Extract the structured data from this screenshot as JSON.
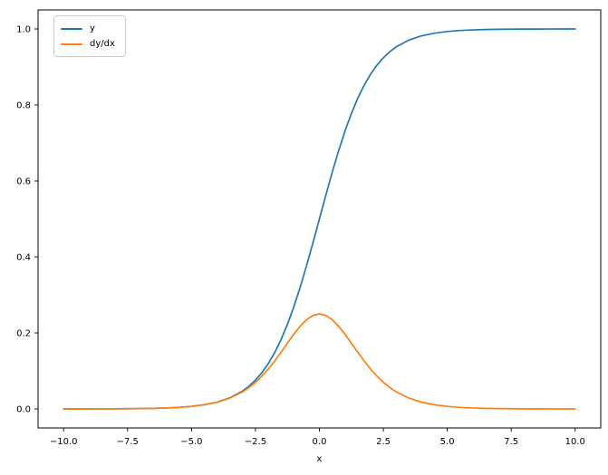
{
  "figure": {
    "background": "#ffffff"
  },
  "chart_data": {
    "type": "line",
    "title": "",
    "xlabel": "x",
    "ylabel": "",
    "xlim": [
      -11,
      11
    ],
    "ylim": [
      -0.05,
      1.05
    ],
    "grid": false,
    "xticks": [
      -10.0,
      -7.5,
      -5.0,
      -2.5,
      0.0,
      2.5,
      5.0,
      7.5,
      10.0
    ],
    "xtick_labels": [
      "−10.0",
      "−7.5",
      "−5.0",
      "−2.5",
      "0.0",
      "2.5",
      "5.0",
      "7.5",
      "10.0"
    ],
    "yticks": [
      0.0,
      0.2,
      0.4,
      0.6,
      0.8,
      1.0
    ],
    "ytick_labels": [
      "0.0",
      "0.2",
      "0.4",
      "0.6",
      "0.8",
      "1.0"
    ],
    "legend": {
      "position": "upper left",
      "entries": [
        {
          "label": "y",
          "color": "#1f77b4"
        },
        {
          "label": "dy/dx",
          "color": "#ff7f0e"
        }
      ]
    },
    "x": [
      -10,
      -9.5,
      -9,
      -8.5,
      -8,
      -7.5,
      -7,
      -6.5,
      -6,
      -5.5,
      -5,
      -4.5,
      -4,
      -3.5,
      -3,
      -2.75,
      -2.5,
      -2.25,
      -2,
      -1.75,
      -1.5,
      -1.25,
      -1,
      -0.75,
      -0.5,
      -0.25,
      0,
      0.25,
      0.5,
      0.75,
      1,
      1.25,
      1.5,
      1.75,
      2,
      2.25,
      2.5,
      2.75,
      3,
      3.5,
      4,
      4.5,
      5,
      5.5,
      6,
      6.5,
      7,
      7.5,
      8,
      8.5,
      9,
      9.5,
      10
    ],
    "series": [
      {
        "name": "y",
        "color": "#1f77b4",
        "values": [
          4.5e-05,
          7.5e-05,
          0.000123,
          0.000203,
          0.000335,
          0.000553,
          0.000911,
          0.001503,
          0.002473,
          0.00407,
          0.006693,
          0.011109,
          0.017986,
          0.029312,
          0.047426,
          0.060087,
          0.075858,
          0.095349,
          0.119203,
          0.148047,
          0.182426,
          0.2227,
          0.268941,
          0.320821,
          0.377541,
          0.437823,
          0.5,
          0.562177,
          0.622459,
          0.679179,
          0.731059,
          0.7773,
          0.817574,
          0.851953,
          0.880797,
          0.904651,
          0.924142,
          0.939913,
          0.952574,
          0.970688,
          0.982014,
          0.988891,
          0.993307,
          0.99593,
          0.997527,
          0.998497,
          0.999089,
          0.999447,
          0.999665,
          0.999797,
          0.999877,
          0.999925,
          0.999955
        ]
      },
      {
        "name": "dy/dx",
        "color": "#ff7f0e",
        "values": [
          4.5e-05,
          7.5e-05,
          0.000123,
          0.000203,
          0.000335,
          0.000552,
          0.00091,
          0.001501,
          0.002467,
          0.004054,
          0.006648,
          0.010987,
          0.017663,
          0.028453,
          0.045177,
          0.056477,
          0.070104,
          0.086258,
          0.104994,
          0.126128,
          0.149146,
          0.173105,
          0.196612,
          0.217895,
          0.235004,
          0.246134,
          0.25,
          0.246134,
          0.235004,
          0.217895,
          0.196612,
          0.173105,
          0.149146,
          0.126128,
          0.104994,
          0.086258,
          0.070104,
          0.056477,
          0.045177,
          0.028453,
          0.017663,
          0.010987,
          0.006648,
          0.004054,
          0.002467,
          0.001501,
          0.00091,
          0.000552,
          0.000335,
          0.000203,
          0.000123,
          7.5e-05,
          4.5e-05
        ]
      }
    ]
  }
}
